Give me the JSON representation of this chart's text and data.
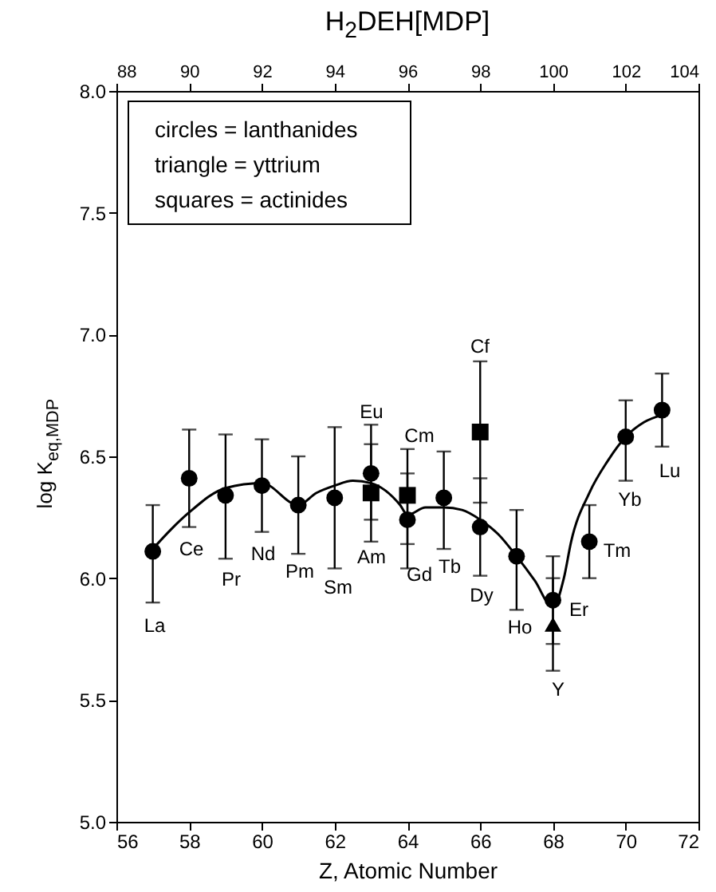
{
  "chart_data": {
    "type": "scatter",
    "title": "H$_{2}$DEH[MDP]",
    "xlabel": "Z, Atomic Number",
    "ylabel": "log K$_{eq,MDP}$",
    "xlim": [
      56,
      72
    ],
    "xticks": [
      56,
      58,
      60,
      62,
      64,
      66,
      68,
      70,
      72
    ],
    "x2lim": [
      88,
      104
    ],
    "x2ticks": [
      88,
      90,
      92,
      94,
      96,
      98,
      100,
      102,
      104
    ],
    "ylim": [
      5.0,
      8.0
    ],
    "yticks": [
      {
        "value": 5.0,
        "label": "5.0"
      },
      {
        "value": 5.5,
        "label": "5.5"
      },
      {
        "value": 6.0,
        "label": "6.0"
      },
      {
        "value": 6.5,
        "label": "6.5"
      },
      {
        "value": 7.0,
        "label": "7.0"
      },
      {
        "value": 7.5,
        "label": "7.5"
      },
      {
        "value": 8.0,
        "label": "8.0"
      }
    ],
    "grid": false,
    "series": [
      {
        "type": "line",
        "color": "#000000",
        "marker": "none",
        "x": [
          57,
          57.5,
          58,
          59,
          60,
          61,
          61.5,
          62,
          62.5,
          63,
          63.8,
          64,
          64.5,
          65,
          65.5,
          66,
          66.5,
          67,
          67.5,
          68,
          68.3,
          68.5,
          69,
          69.5,
          70,
          70.5,
          71
        ],
        "values": [
          6.12,
          6.2,
          6.27,
          6.37,
          6.39,
          6.3,
          6.35,
          6.38,
          6.4,
          6.39,
          6.3,
          6.26,
          6.29,
          6.29,
          6.28,
          6.24,
          6.18,
          6.09,
          5.99,
          5.88,
          6.0,
          6.15,
          6.35,
          6.48,
          6.58,
          6.64,
          6.67
        ]
      },
      {
        "color": "#000000",
        "marker": "circle",
        "x": [
          57,
          58,
          59,
          60,
          61,
          62,
          63,
          64,
          65,
          66,
          67,
          68,
          69,
          70,
          71
        ],
        "values": [
          6.11,
          6.41,
          6.34,
          6.38,
          6.3,
          6.33,
          6.43,
          6.24,
          6.33,
          6.21,
          6.09,
          5.91,
          6.15,
          6.58,
          6.69
        ],
        "errors": [
          [
            5.9,
            6.3
          ],
          [
            6.21,
            6.61
          ],
          [
            6.08,
            6.59
          ],
          [
            6.19,
            6.57
          ],
          [
            6.1,
            6.5
          ],
          [
            6.04,
            6.62
          ],
          [
            6.24,
            6.63
          ],
          [
            6.04,
            6.43
          ],
          [
            6.12,
            6.52
          ],
          [
            6.01,
            6.41
          ],
          [
            5.87,
            6.28
          ],
          [
            5.73,
            6.09
          ],
          [
            6.0,
            6.3
          ],
          [
            6.4,
            6.73
          ],
          [
            6.54,
            6.84
          ]
        ]
      },
      {
        "color": "#000000",
        "marker": "square",
        "x": [
          63,
          64,
          66
        ],
        "values": [
          6.35,
          6.34,
          6.6
        ],
        "errors": [
          [
            6.15,
            6.55
          ],
          [
            6.14,
            6.53
          ],
          [
            6.31,
            6.89
          ]
        ]
      },
      {
        "color": "#000000",
        "marker": "triangle",
        "x": [
          68
        ],
        "values": [
          5.81
        ],
        "errors": [
          [
            5.62,
            6.0
          ]
        ]
      }
    ],
    "annotations": [
      "circles = lanthanides",
      "triangle = yttrium",
      "squares = actinides",
      "La",
      "Ce",
      "Pr",
      "Nd",
      "Pm",
      "Sm",
      "Eu",
      "Am",
      "Cm",
      "Gd",
      "Tb",
      "Cf",
      "Dy",
      "Ho",
      "Er",
      "Y",
      "Tm",
      "Yb",
      "Lu"
    ]
  }
}
